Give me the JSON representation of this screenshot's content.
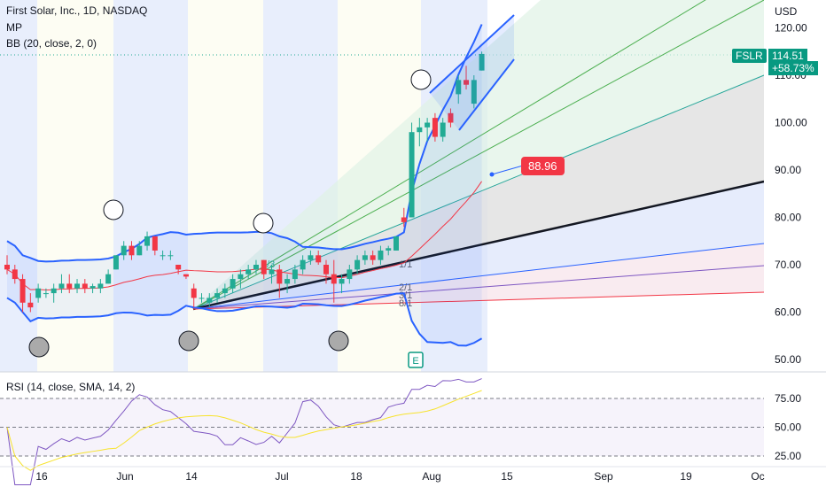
{
  "header": {
    "title": "First Solar, Inc., 1D, NASDAQ",
    "indicator_mp": "MP",
    "indicator_bb": "BB (20, close, 2, 0)",
    "currency": "USD",
    "rsi_label": "RSI (14, close, SMA, 14, 2)"
  },
  "price_tag": {
    "symbol": "FSLR",
    "price": "114.51",
    "change": "+58.73%"
  },
  "fan_tag": "88.96",
  "earnings_marker": "E",
  "fan_labels": [
    "1/3",
    "1/1",
    "2/1",
    "3/1",
    "8/1"
  ],
  "colors": {
    "up": "#22ab94",
    "down": "#f23645",
    "bb": "#2962ff",
    "sma": "#f23645",
    "rsi": "#7e57c2",
    "rsi_ma": "#f7e32d",
    "accent": "#089981"
  },
  "chart_data": {
    "type": "candlestick",
    "y_axis": {
      "ticks": [
        50,
        60,
        70,
        80,
        90,
        100,
        110,
        120
      ],
      "range": [
        47.5,
        124
      ]
    },
    "x_axis": {
      "ticks": [
        "16",
        "Jun",
        "14",
        "Jul",
        "18",
        "Aug",
        "15",
        "Sep",
        "19",
        "Oc"
      ]
    },
    "candles": [
      {
        "o": 70,
        "h": 72,
        "l": 68,
        "c": 69
      },
      {
        "o": 69,
        "h": 70,
        "l": 66,
        "c": 67
      },
      {
        "o": 67,
        "h": 68,
        "l": 60,
        "c": 62
      },
      {
        "o": 62,
        "h": 64,
        "l": 60,
        "c": 61
      },
      {
        "o": 63,
        "h": 66,
        "l": 62,
        "c": 65
      },
      {
        "o": 64,
        "h": 65,
        "l": 63,
        "c": 64
      },
      {
        "o": 64,
        "h": 66,
        "l": 62,
        "c": 65
      },
      {
        "o": 65,
        "h": 68,
        "l": 64,
        "c": 66
      },
      {
        "o": 66,
        "h": 68,
        "l": 64,
        "c": 65
      },
      {
        "o": 65,
        "h": 67,
        "l": 64,
        "c": 66
      },
      {
        "o": 66,
        "h": 67,
        "l": 64,
        "c": 65
      },
      {
        "o": 65,
        "h": 66,
        "l": 64,
        "c": 65.5
      },
      {
        "o": 65,
        "h": 67,
        "l": 64,
        "c": 66
      },
      {
        "o": 66,
        "h": 69,
        "l": 66,
        "c": 68
      },
      {
        "o": 69,
        "h": 72,
        "l": 69,
        "c": 72
      },
      {
        "o": 72,
        "h": 75,
        "l": 71,
        "c": 74
      },
      {
        "o": 74,
        "h": 75,
        "l": 71,
        "c": 72
      },
      {
        "o": 72,
        "h": 75,
        "l": 72,
        "c": 74
      },
      {
        "o": 74,
        "h": 77,
        "l": 73,
        "c": 76
      },
      {
        "o": 76,
        "h": 76,
        "l": 72,
        "c": 73
      },
      {
        "o": 72,
        "h": 73,
        "l": 71,
        "c": 72
      },
      {
        "o": 72,
        "h": 73,
        "l": 71,
        "c": 72
      },
      {
        "o": 70,
        "h": 70,
        "l": 68,
        "c": 69
      },
      {
        "o": 68,
        "h": 68,
        "l": 67,
        "c": 67.5
      },
      {
        "o": 65,
        "h": 66,
        "l": 61,
        "c": 63
      },
      {
        "o": 63,
        "h": 64,
        "l": 62,
        "c": 63
      },
      {
        "o": 62,
        "h": 64,
        "l": 61,
        "c": 63
      },
      {
        "o": 63,
        "h": 65,
        "l": 62,
        "c": 64
      },
      {
        "o": 64,
        "h": 66,
        "l": 63,
        "c": 65
      },
      {
        "o": 65,
        "h": 68,
        "l": 64,
        "c": 67
      },
      {
        "o": 67,
        "h": 69,
        "l": 65,
        "c": 68
      },
      {
        "o": 68,
        "h": 70,
        "l": 67,
        "c": 69
      },
      {
        "o": 69,
        "h": 71,
        "l": 68,
        "c": 70
      },
      {
        "o": 71,
        "h": 71,
        "l": 67,
        "c": 68
      },
      {
        "o": 68,
        "h": 70,
        "l": 66,
        "c": 69
      },
      {
        "o": 69,
        "h": 70,
        "l": 63,
        "c": 66
      },
      {
        "o": 66,
        "h": 68,
        "l": 64,
        "c": 67
      },
      {
        "o": 67,
        "h": 70,
        "l": 66,
        "c": 69
      },
      {
        "o": 69,
        "h": 72,
        "l": 68,
        "c": 71
      },
      {
        "o": 71,
        "h": 73,
        "l": 70,
        "c": 72
      },
      {
        "o": 72,
        "h": 73,
        "l": 70,
        "c": 70.5
      },
      {
        "o": 70,
        "h": 71,
        "l": 66,
        "c": 68
      },
      {
        "o": 68,
        "h": 71,
        "l": 62,
        "c": 66
      },
      {
        "o": 66,
        "h": 68,
        "l": 64,
        "c": 67
      },
      {
        "o": 67,
        "h": 70,
        "l": 66,
        "c": 69
      },
      {
        "o": 69,
        "h": 72,
        "l": 68,
        "c": 71
      },
      {
        "o": 71,
        "h": 73,
        "l": 70,
        "c": 72
      },
      {
        "o": 72,
        "h": 73,
        "l": 70,
        "c": 71
      },
      {
        "o": 71,
        "h": 74,
        "l": 70,
        "c": 73
      },
      {
        "o": 73,
        "h": 74,
        "l": 72,
        "c": 73.5
      },
      {
        "o": 73,
        "h": 76,
        "l": 73,
        "c": 76
      },
      {
        "o": 80,
        "h": 82,
        "l": 78,
        "c": 79
      },
      {
        "o": 80,
        "h": 100,
        "l": 80,
        "c": 98
      },
      {
        "o": 98,
        "h": 101,
        "l": 95,
        "c": 99
      },
      {
        "o": 99,
        "h": 101,
        "l": 96,
        "c": 100
      },
      {
        "o": 101,
        "h": 102,
        "l": 96,
        "c": 97
      },
      {
        "o": 97,
        "h": 101,
        "l": 96,
        "c": 100
      },
      {
        "o": 102,
        "h": 103,
        "l": 99,
        "c": 100
      },
      {
        "o": 106,
        "h": 110,
        "l": 104,
        "c": 109
      },
      {
        "o": 109,
        "h": 112,
        "l": 107,
        "c": 108
      },
      {
        "o": 104,
        "h": 110,
        "l": 103,
        "c": 109
      },
      {
        "o": 111,
        "h": 115,
        "l": 111,
        "c": 114.5
      }
    ],
    "rsi_axis": {
      "ticks": [
        25,
        50,
        75
      ]
    }
  }
}
